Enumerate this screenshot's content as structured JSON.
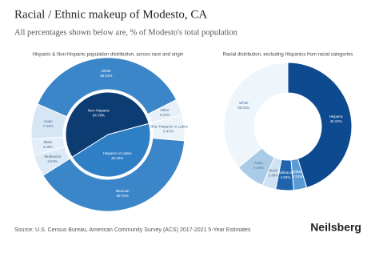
{
  "title": "Racial / Ethnic makeup of Modesto, CA",
  "subtitle": "All percentages shown below are, % of Modesto's total population",
  "source": "Source: U.S. Census Bureau, American Community Survey (ACS) 2017-2021 5-Year Estimates",
  "brand": "Neilsberg",
  "chart_data": [
    {
      "type": "donut",
      "title": "Hispanic & Non-Hispanic population distribution, across race and origin",
      "inner": {
        "categories": [
          "Hispanic or Latino",
          "Non-Hispanic"
        ],
        "values": [
          45.22,
          54.78
        ],
        "value_labels": [
          "45.22%",
          "54.78%"
        ],
        "colors": [
          "#2f7fc6",
          "#0d3c73"
        ]
      },
      "outer": {
        "categories": [
          "Other Hispanic or Latino",
          "Mexican",
          "Multiracial",
          "Black",
          "Asian",
          "White",
          "Other"
        ],
        "values": [
          5.47,
          39.75,
          4.53,
          3.49,
          7.44,
          36.01,
          3.31
        ],
        "value_labels": [
          "5.47%",
          "39.75%",
          "4.53%",
          "3.49%",
          "7.44%",
          "36.01%",
          "3.31%"
        ],
        "colors": [
          "#eaf2fa",
          "#3a86c8",
          "#dce9f6",
          "#e3eef8",
          "#d6e6f5",
          "#3a86c8",
          "#e6f0f9"
        ]
      }
    },
    {
      "type": "donut",
      "title": "Racial distribution, excluding Hispanics from racial categories",
      "categories": [
        "Hispanic",
        "Other",
        "Multiracial",
        "Black",
        "Asian",
        "White"
      ],
      "values": [
        45.22,
        3.31,
        4.53,
        3.49,
        7.44,
        36.01
      ],
      "value_labels": [
        "45.22%",
        "3.31%",
        "4.53%",
        "3.49%",
        "7.44%",
        "36.01%"
      ],
      "colors": [
        "#0d4a8f",
        "#5b9bd5",
        "#1f64ad",
        "#cfe2f3",
        "#a9cbe8",
        "#eef5fb"
      ]
    }
  ]
}
